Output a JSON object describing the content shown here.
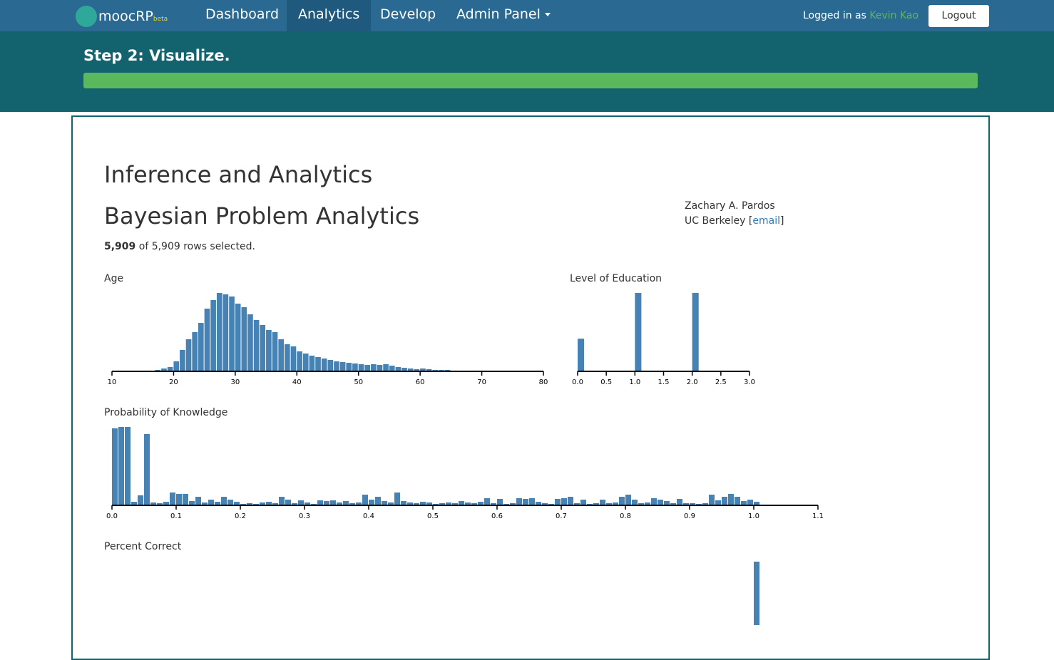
{
  "navbar": {
    "brand": "moocRP",
    "brand_badge": "beta",
    "links": [
      "Dashboard",
      "Analytics",
      "Develop",
      "Admin Panel"
    ],
    "logged_in_label": "Logged in as",
    "user": "Kevin Kao",
    "logout": "Logout"
  },
  "header": {
    "step": "Step 2: Visualize."
  },
  "content": {
    "title": "Inference and Analytics",
    "subtitle": "Bayesian Problem Analytics",
    "selected_count": "5,909",
    "selected_text": "of 5,909 rows selected.",
    "author": "Zachary A. Pardos",
    "affiliation": "UC Berkeley",
    "email_open": "[",
    "email_link": "email",
    "email_close": "]"
  },
  "chart_data": [
    {
      "type": "histogram",
      "title": "Age",
      "color": "#4682b4",
      "xlim": [
        10,
        80
      ],
      "xticks": [
        10,
        20,
        30,
        40,
        50,
        60,
        70,
        80
      ],
      "bins": [
        16,
        17,
        18,
        19,
        20,
        21,
        22,
        23,
        24,
        25,
        26,
        27,
        28,
        29,
        30,
        31,
        32,
        33,
        34,
        35,
        36,
        37,
        38,
        39,
        40,
        41,
        42,
        43,
        44,
        45,
        46,
        47,
        48,
        49,
        50,
        51,
        52,
        53,
        54,
        55,
        56,
        57,
        58,
        59,
        60,
        61,
        62,
        63,
        64,
        65,
        66,
        67,
        68,
        69,
        70,
        71,
        72,
        73,
        74
      ],
      "values": [
        1,
        2,
        4,
        6,
        14,
        30,
        45,
        55,
        68,
        88,
        100,
        110,
        108,
        105,
        95,
        90,
        80,
        72,
        65,
        58,
        55,
        45,
        38,
        35,
        28,
        25,
        22,
        20,
        18,
        16,
        14,
        13,
        12,
        11,
        10,
        9,
        10,
        9,
        10,
        8,
        6,
        5,
        4,
        3,
        4,
        3,
        2,
        2,
        2,
        1,
        1,
        1,
        1,
        1,
        1,
        1,
        0.5,
        0.5
      ]
    },
    {
      "type": "histogram",
      "title": "Level of Education",
      "color": "#4682b4",
      "xlim": [
        0,
        3
      ],
      "xticks": [
        {
          "value": 0,
          "label": "0.0"
        },
        0.5,
        {
          "value": 1,
          "label": "1.0"
        },
        1.5,
        {
          "value": 2,
          "label": "2.0"
        },
        2.5,
        {
          "value": 3,
          "label": "3.0"
        }
      ],
      "bins": [
        0,
        0.125,
        0.25,
        0.375,
        0.5,
        0.625,
        0.75,
        0.875,
        1,
        1.125,
        1.25,
        1.375,
        1.5,
        1.625,
        1.75,
        1.875,
        2,
        2.125,
        2.25,
        2.375,
        2.5,
        2.625,
        2.75,
        2.875,
        3
      ],
      "values": [
        45,
        0,
        0,
        0,
        0,
        0,
        0,
        0,
        108,
        0,
        0,
        0,
        0,
        0,
        0,
        0,
        108,
        0,
        0,
        0,
        0,
        0,
        0,
        0
      ]
    },
    {
      "type": "histogram",
      "title": "Probability of Knowledge",
      "color": "#4682b4",
      "xlim": [
        0,
        1.1
      ],
      "xticks": [
        {
          "value": 0,
          "label": "0.0"
        },
        0.1,
        0.2,
        0.3,
        0.4,
        0.5,
        0.6,
        0.7,
        0.8,
        0.9,
        {
          "value": 1,
          "label": "1.0"
        },
        1.1
      ],
      "bins": [
        0,
        0.01,
        0.02,
        0.03,
        0.04,
        0.05,
        0.06,
        0.07,
        0.08,
        0.09,
        0.1,
        0.11,
        0.12,
        0.13,
        0.14,
        0.15,
        0.16,
        0.17,
        0.18,
        0.19,
        0.2,
        0.21,
        0.22,
        0.23,
        0.24,
        0.25,
        0.26,
        0.27,
        0.28,
        0.29,
        0.3,
        0.31,
        0.32,
        0.33,
        0.34,
        0.35,
        0.36,
        0.37,
        0.38,
        0.39,
        0.4,
        0.41,
        0.42,
        0.43,
        0.44,
        0.45,
        0.46,
        0.47,
        0.48,
        0.49,
        0.5,
        0.51,
        0.52,
        0.53,
        0.54,
        0.55,
        0.56,
        0.57,
        0.58,
        0.59,
        0.6,
        0.61,
        0.62,
        0.63,
        0.64,
        0.65,
        0.66,
        0.67,
        0.68,
        0.69,
        0.7,
        0.71,
        0.72,
        0.73,
        0.74,
        0.75,
        0.76,
        0.77,
        0.78,
        0.79,
        0.8,
        0.81,
        0.82,
        0.83,
        0.84,
        0.85,
        0.86,
        0.87,
        0.88,
        0.89,
        0.9,
        0.91,
        0.92,
        0.93,
        0.94,
        0.95,
        0.96,
        0.97,
        0.98,
        0.99,
        1,
        1.01
      ],
      "values": [
        108,
        110,
        110,
        5,
        14,
        100,
        4,
        3,
        5,
        18,
        16,
        16,
        6,
        12,
        4,
        8,
        5,
        12,
        8,
        5,
        2,
        3,
        2,
        4,
        5,
        3,
        12,
        8,
        3,
        7,
        4,
        2,
        7,
        6,
        7,
        4,
        6,
        3,
        4,
        15,
        8,
        12,
        6,
        4,
        18,
        6,
        4,
        3,
        5,
        4,
        2,
        3,
        4,
        3,
        6,
        4,
        3,
        5,
        10,
        3,
        9,
        2,
        3,
        10,
        9,
        10,
        5,
        3,
        2,
        9,
        10,
        12,
        3,
        8,
        2,
        3,
        8,
        3,
        4,
        12,
        15,
        8,
        3,
        4,
        10,
        8,
        6,
        3,
        9,
        3,
        3,
        2,
        3,
        15,
        7,
        12,
        16,
        12,
        6,
        8,
        5
      ]
    },
    {
      "type": "histogram",
      "title": "Percent Correct",
      "color": "#4682b4",
      "xlim": [
        0,
        1.1
      ],
      "bins": [
        1,
        1.01
      ],
      "values": [
        130
      ]
    }
  ]
}
